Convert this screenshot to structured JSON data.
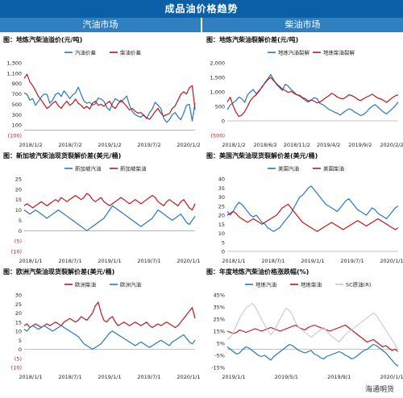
{
  "page_title": "成品油价格趋势",
  "sections": [
    "汽油市场",
    "柴油市场"
  ],
  "watermark": "海通明货",
  "colors": {
    "blue": "#2776c4",
    "red": "#c0161d",
    "grey": "#c8c8c8"
  },
  "chart_data": [
    {
      "type": "line",
      "title": "图：地炼汽柴油溢价(元/吨)",
      "ylim": [
        -100,
        1300
      ],
      "yticks": [
        "(100)",
        "100",
        "300",
        "500",
        "700",
        "900",
        "1,100",
        "1,300"
      ],
      "xticks": [
        "2018/1/2",
        "2018/7/2",
        "2019/1/2",
        "2019/7/2",
        "2020/1/2"
      ],
      "legend": "top-center",
      "series": [
        {
          "name": "汽油价差",
          "color": "blue",
          "values": [
            720,
            690,
            580,
            610,
            480,
            560,
            640,
            700,
            690,
            520,
            580,
            690,
            720,
            650,
            760,
            690,
            610,
            680,
            720,
            830,
            690,
            560,
            520,
            540,
            480,
            510,
            620,
            600,
            560,
            440,
            380,
            520,
            610,
            570,
            540,
            600,
            660,
            480,
            360,
            300,
            270,
            250,
            300,
            220,
            340,
            410,
            540,
            480,
            420,
            230,
            150,
            200,
            300,
            340,
            260,
            200,
            330,
            480,
            500,
            180,
            520
          ]
        },
        {
          "name": "柴油价差",
          "color": "red",
          "values": [
            1000,
            1080,
            930,
            860,
            760,
            650,
            580,
            500,
            420,
            460,
            520,
            560,
            470,
            420,
            500,
            560,
            480,
            520,
            600,
            520,
            480,
            420,
            460,
            410,
            520,
            560,
            480,
            500,
            460,
            520,
            560,
            460,
            420,
            510,
            580,
            520,
            460,
            390,
            420,
            360,
            330,
            340,
            280,
            240,
            210,
            280,
            360,
            420,
            330,
            270,
            300,
            320,
            420,
            470,
            580,
            690,
            740,
            700,
            820,
            860,
            400
          ]
        }
      ]
    },
    {
      "type": "line",
      "title": "图：地炼汽柴油裂解价差(元/吨)",
      "ylim": [
        -500,
        2000
      ],
      "yticks": [
        "(500)",
        "0",
        "500",
        "1,000",
        "1,500",
        "2,000"
      ],
      "xticks": [
        "2018/1/2",
        "2018/6/2",
        "2018/11/2",
        "2019/4/2",
        "2019/9/2",
        "2020/2/2"
      ],
      "legend": "top-center",
      "series": [
        {
          "name": "地炼汽油裂解",
          "color": "blue",
          "values": [
            380,
            550,
            620,
            700,
            820,
            760,
            640,
            900,
            1000,
            1080,
            930,
            1050,
            1150,
            1320,
            1450,
            1600,
            1420,
            1250,
            1150,
            1050,
            1260,
            1200,
            1080,
            1000,
            900,
            850,
            780,
            700,
            650,
            720,
            800,
            760,
            600,
            560,
            480,
            400,
            350,
            300,
            260,
            200,
            280,
            350,
            410,
            380,
            300,
            250,
            180,
            220,
            300,
            420,
            500,
            560,
            480,
            380,
            300,
            240,
            330,
            420,
            520,
            650
          ]
        },
        {
          "name": "地炼柴油裂解",
          "color": "red",
          "values": [
            650,
            820,
            520,
            300,
            150,
            200,
            320,
            500,
            700,
            820,
            900,
            1020,
            1180,
            1300,
            1420,
            1500,
            1380,
            1280,
            1190,
            1100,
            1050,
            980,
            1020,
            950,
            900,
            880,
            800,
            760,
            680,
            720,
            680,
            620,
            650,
            720,
            800,
            860,
            950,
            900,
            820,
            780,
            760,
            820,
            900,
            870,
            820,
            740,
            700,
            760,
            820,
            860,
            920,
            850,
            780,
            760,
            700,
            640,
            720,
            800,
            860,
            900
          ]
        }
      ]
    },
    {
      "type": "line",
      "title": "图：新加坡汽柴油现货裂解价差(美元/桶)",
      "ylim": [
        -10,
        25
      ],
      "yticks": [
        "(10)",
        "(5)",
        "0",
        "5",
        "10",
        "15",
        "20",
        "25"
      ],
      "xticks": [
        "2018/1/1",
        "2018/7/1",
        "2019/1/1",
        "2019/7/1",
        "2020/1/1"
      ],
      "legend": "top-center",
      "series": [
        {
          "name": "新加坡汽油",
          "color": "blue",
          "values": [
            10,
            9,
            8,
            9,
            10,
            9,
            8,
            7,
            6,
            7,
            8,
            9,
            10,
            9,
            8,
            7,
            6,
            5,
            4,
            3,
            2,
            1,
            0,
            1,
            2,
            3,
            4,
            5,
            6,
            8,
            10,
            12,
            11,
            10,
            9,
            8,
            7,
            6,
            5,
            4,
            3,
            2,
            3,
            4,
            5,
            6,
            8,
            10,
            9,
            8,
            7,
            6,
            5,
            6,
            7,
            8,
            6,
            4,
            3,
            5,
            7
          ]
        },
        {
          "name": "新加坡柴油",
          "color": "red",
          "values": [
            12,
            13,
            12,
            11,
            12,
            13,
            14,
            13,
            12,
            13,
            14,
            15,
            14,
            16,
            15,
            14,
            15,
            16,
            17,
            16,
            15,
            16,
            18,
            17,
            15,
            14,
            15,
            16,
            14,
            13,
            12,
            13,
            14,
            15,
            16,
            15,
            14,
            13,
            14,
            15,
            14,
            13,
            14,
            15,
            16,
            17,
            16,
            14,
            13,
            12,
            14,
            15,
            14,
            13,
            12,
            14,
            15,
            13,
            11,
            10,
            13
          ]
        }
      ]
    },
    {
      "type": "line",
      "title": "图：美国汽柴油现货裂解价差(美元/桶)",
      "ylim": [
        0,
        40
      ],
      "yticks": [
        "0",
        "5",
        "10",
        "15",
        "20",
        "25",
        "30",
        "35",
        "40"
      ],
      "xticks": [
        "2018/1/1",
        "2018/7/1",
        "2019/1/1",
        "2019/7/1",
        "2020/1/1"
      ],
      "legend": "top-center",
      "series": [
        {
          "name": "美国汽油",
          "color": "blue",
          "values": [
            22,
            20,
            22,
            25,
            27,
            26,
            24,
            22,
            20,
            19,
            20,
            18,
            16,
            15,
            13,
            12,
            11,
            12,
            13,
            15,
            17,
            19,
            21,
            24,
            27,
            30,
            31,
            33,
            35,
            36,
            34,
            32,
            30,
            28,
            26,
            25,
            24,
            23,
            22,
            24,
            26,
            28,
            29,
            27,
            25,
            23,
            22,
            21,
            20,
            22,
            24,
            23,
            21,
            20,
            19,
            18,
            20,
            22,
            24,
            25
          ]
        },
        {
          "name": "美国柴油",
          "color": "red",
          "values": [
            20,
            21,
            22,
            21,
            19,
            18,
            17,
            16,
            17,
            18,
            17,
            16,
            15,
            16,
            17,
            18,
            19,
            20,
            22,
            24,
            25,
            26,
            24,
            22,
            20,
            18,
            16,
            15,
            14,
            13,
            12,
            11,
            12,
            13,
            14,
            15,
            16,
            15,
            14,
            13,
            12,
            13,
            14,
            15,
            16,
            17,
            16,
            15,
            14,
            15,
            16,
            17,
            18,
            17,
            16,
            15,
            14,
            13,
            12,
            13
          ]
        }
      ]
    },
    {
      "type": "line",
      "title": "图：欧洲汽柴油现货裂解价差(美元/桶)",
      "ylim": [
        -10,
        30
      ],
      "yticks": [
        "(10)",
        "(5)",
        "0",
        "5",
        "10",
        "15",
        "20",
        "25",
        "30"
      ],
      "xticks": [
        "2018/1/1",
        "2018/7/1",
        "2019/1/1",
        "2019/7/1",
        "2020/1/1"
      ],
      "legend": "top-center",
      "series": [
        {
          "name": "欧洲柴油",
          "color": "red",
          "values": [
            13,
            14,
            12,
            13,
            14,
            13,
            12,
            13,
            14,
            13,
            14,
            15,
            14,
            13,
            15,
            16,
            17,
            16,
            15,
            16,
            18,
            17,
            16,
            18,
            20,
            24,
            26,
            20,
            16,
            15,
            17,
            18,
            15,
            13,
            14,
            15,
            14,
            13,
            14,
            15,
            14,
            13,
            14,
            15,
            13,
            12,
            13,
            14,
            13,
            14,
            15,
            14,
            13,
            12,
            13,
            15,
            17,
            19,
            21,
            23,
            17
          ]
        },
        {
          "name": "欧洲汽油",
          "color": "blue",
          "values": [
            11,
            10,
            12,
            13,
            12,
            11,
            12,
            13,
            12,
            11,
            10,
            11,
            12,
            13,
            12,
            11,
            10,
            9,
            8,
            7,
            5,
            3,
            2,
            1,
            0,
            1,
            2,
            3,
            5,
            7,
            9,
            10,
            9,
            8,
            7,
            6,
            5,
            4,
            3,
            2,
            3,
            4,
            3,
            2,
            1,
            2,
            3,
            4,
            5,
            4,
            3,
            2,
            4,
            5,
            6,
            7,
            8,
            6,
            4,
            3,
            5
          ]
        }
      ]
    },
    {
      "type": "line",
      "title": "图：年度地炼汽柴油价格涨跌幅(%)",
      "ylim": [
        -15,
        45
      ],
      "yticks": [
        "-15%",
        "-5%",
        "5%",
        "15%",
        "25%",
        "35%",
        "45%"
      ],
      "xticks": [
        "2019/1/1",
        "2019/5/1",
        "2019/9/1",
        "2020/1/1"
      ],
      "legend": "top-center",
      "series": [
        {
          "name": "地炼汽油",
          "color": "blue",
          "values": [
            2,
            0,
            -2,
            -4,
            -3,
            0,
            2,
            1,
            -1,
            -3,
            -5,
            -6,
            -5,
            -7,
            -9,
            -6,
            -4,
            -2,
            0,
            2,
            4,
            3,
            1,
            -1,
            -2,
            -3,
            -2,
            -1,
            -4,
            -5,
            -7,
            -8,
            -6,
            -5,
            -4,
            -3,
            -2,
            -3,
            -5,
            -6,
            -8,
            -7,
            -5,
            -3,
            -1,
            0,
            2,
            4,
            3,
            1,
            -1,
            -3,
            -6,
            -9,
            -12,
            -14
          ]
        },
        {
          "name": "地炼柴油",
          "color": "red",
          "values": [
            15,
            14,
            13,
            14,
            16,
            15,
            14,
            15,
            16,
            17,
            16,
            15,
            16,
            17,
            18,
            17,
            16,
            15,
            16,
            17,
            18,
            19,
            20,
            18,
            17,
            16,
            18,
            19,
            20,
            19,
            18,
            17,
            16,
            15,
            16,
            17,
            18,
            19,
            20,
            18,
            16,
            14,
            12,
            10,
            8,
            6,
            7,
            8,
            6,
            4,
            2,
            3,
            1,
            -1,
            0,
            -2
          ]
        },
        {
          "name": "SC原油(R)",
          "color": "grey",
          "values": [
            8,
            10,
            14,
            20,
            26,
            30,
            34,
            36,
            38,
            35,
            30,
            25,
            20,
            16,
            12,
            15,
            20,
            25,
            30,
            34,
            32,
            28,
            22,
            18,
            16,
            14,
            12,
            10,
            12,
            14,
            16,
            18,
            15,
            12,
            10,
            8,
            6,
            9,
            12,
            14,
            16,
            18,
            20,
            22,
            24,
            26,
            28,
            30,
            28,
            24,
            20,
            16,
            12,
            8,
            4,
            -2
          ]
        }
      ]
    }
  ]
}
